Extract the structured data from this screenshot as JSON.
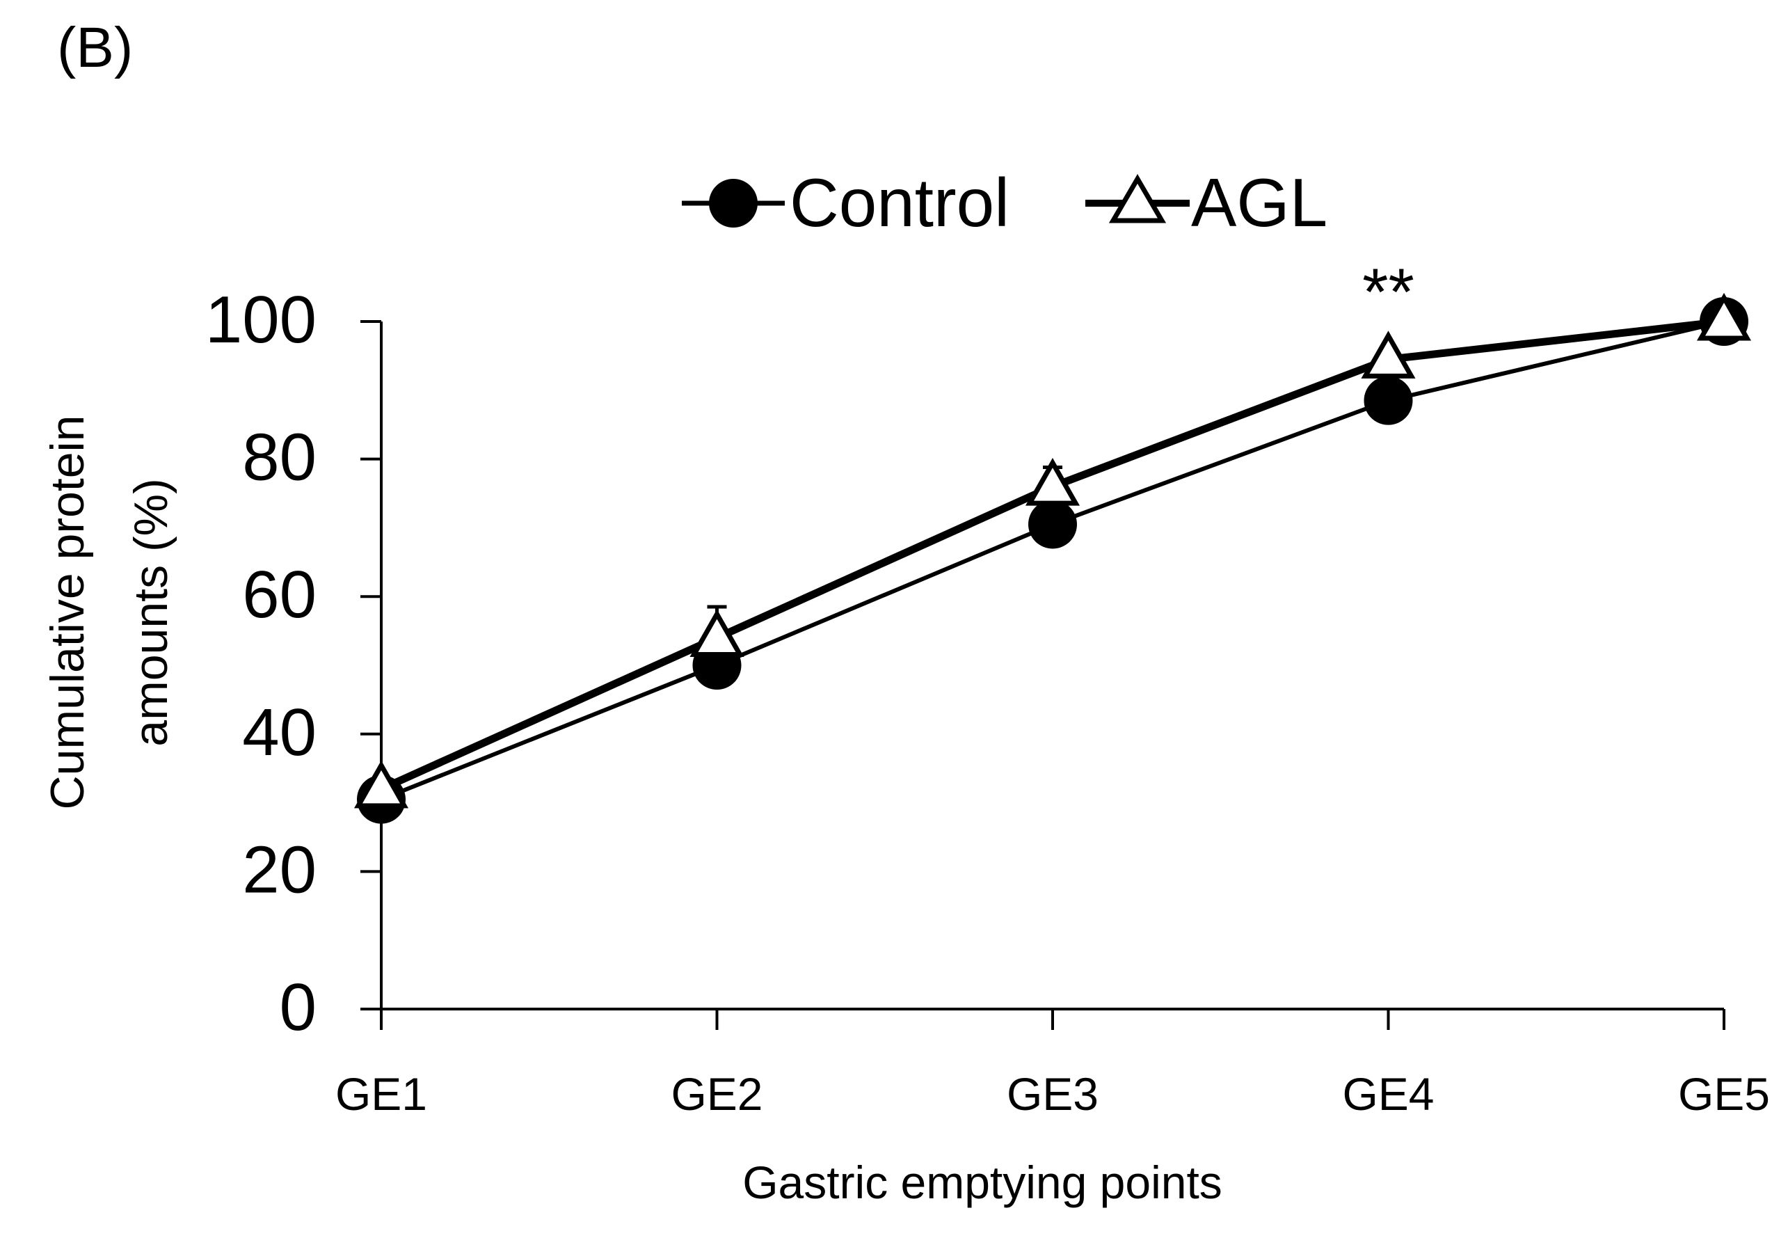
{
  "panel_label": "(B)",
  "chart_data": {
    "type": "line",
    "title": "",
    "xlabel": "Gastric emptying points",
    "ylabel_line1": "Cumulative protein",
    "ylabel_line2": "amounts (%)",
    "categories": [
      "GE1",
      "GE2",
      "GE3",
      "GE4",
      "GE5"
    ],
    "ylim": [
      0,
      100
    ],
    "yticks": [
      0,
      20,
      40,
      60,
      80,
      100
    ],
    "grid": false,
    "legend_position": "top",
    "series": [
      {
        "name": "Control",
        "marker": "filled-circle",
        "color": "#000000",
        "values": [
          30.5,
          50,
          70.5,
          88.5,
          100
        ]
      },
      {
        "name": "AGL",
        "marker": "open-triangle",
        "color": "#000000",
        "values": [
          32,
          54,
          76,
          94.5,
          100
        ],
        "error_upper": [
          0,
          4.5,
          2.8,
          0,
          0
        ]
      }
    ],
    "annotations": [
      {
        "text": "**",
        "category": "GE4",
        "y": 104
      }
    ]
  }
}
